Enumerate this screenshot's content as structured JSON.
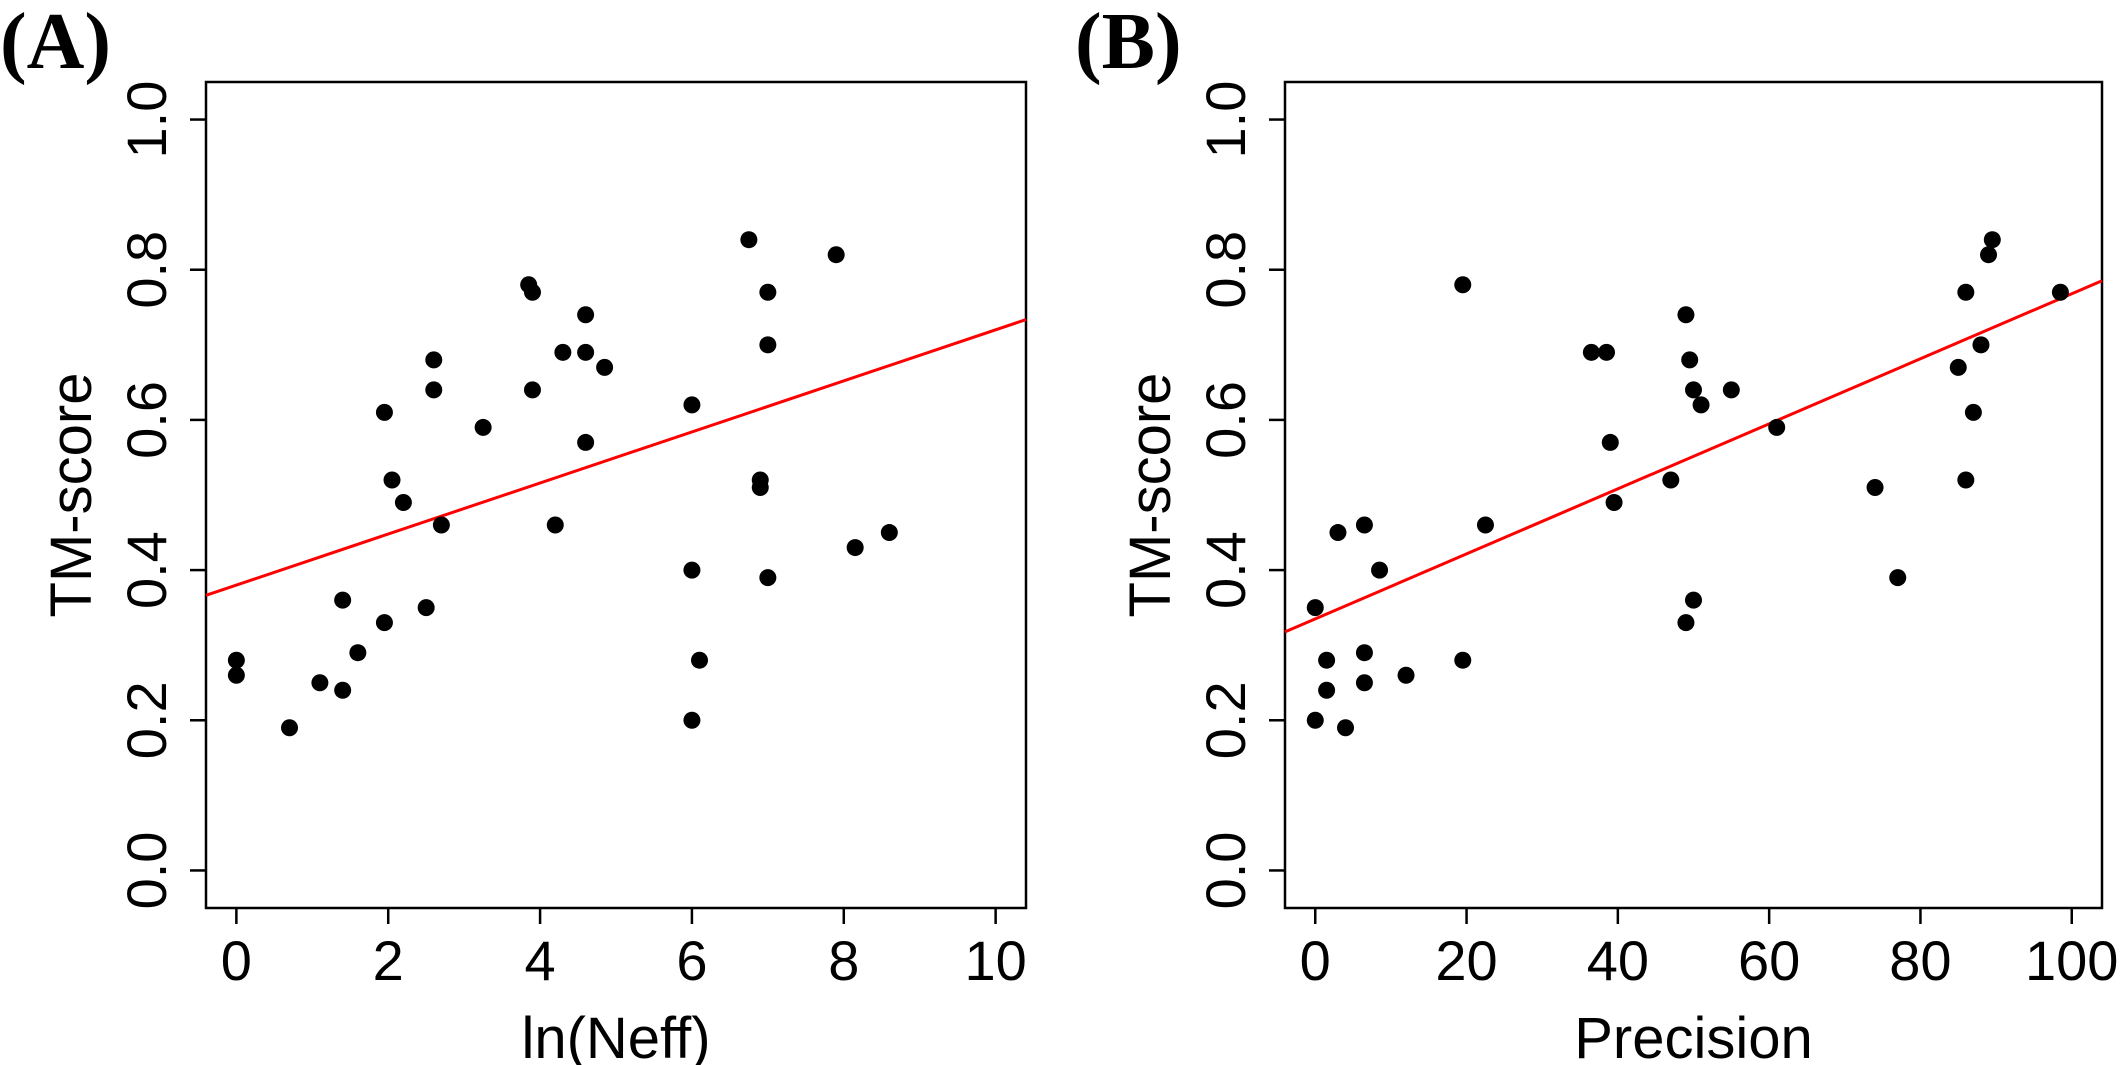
{
  "chart_data": [
    {
      "type": "scatter",
      "panel_label": "(A)",
      "xlabel": "ln(Neff)",
      "ylabel": "TM-score",
      "xlim": [
        -0.4,
        10.4
      ],
      "ylim": [
        -0.05,
        1.05
      ],
      "xticks": [
        "0",
        "2",
        "4",
        "6",
        "8",
        "10"
      ],
      "xtick_values": [
        0,
        2,
        4,
        6,
        8,
        10
      ],
      "yticks": [
        "0.0",
        "0.2",
        "0.4",
        "0.6",
        "0.8",
        "1.0"
      ],
      "ytick_values": [
        0,
        0.2,
        0.4,
        0.6,
        0.8,
        1.0
      ],
      "grid": false,
      "point_color": "#000000",
      "fit_color": "#ff0000",
      "fit_line": {
        "slope": 0.034,
        "intercept": 0.38
      },
      "points": [
        {
          "x": 0.0,
          "y": 0.28
        },
        {
          "x": 0.0,
          "y": 0.26
        },
        {
          "x": 0.7,
          "y": 0.19
        },
        {
          "x": 1.1,
          "y": 0.25
        },
        {
          "x": 1.4,
          "y": 0.36
        },
        {
          "x": 1.4,
          "y": 0.24
        },
        {
          "x": 1.6,
          "y": 0.29
        },
        {
          "x": 1.95,
          "y": 0.61
        },
        {
          "x": 1.95,
          "y": 0.33
        },
        {
          "x": 2.05,
          "y": 0.52
        },
        {
          "x": 2.2,
          "y": 0.49
        },
        {
          "x": 2.5,
          "y": 0.35
        },
        {
          "x": 2.6,
          "y": 0.68
        },
        {
          "x": 2.6,
          "y": 0.64
        },
        {
          "x": 2.7,
          "y": 0.46
        },
        {
          "x": 3.25,
          "y": 0.59
        },
        {
          "x": 3.85,
          "y": 0.78
        },
        {
          "x": 3.9,
          "y": 0.77
        },
        {
          "x": 3.9,
          "y": 0.64
        },
        {
          "x": 4.2,
          "y": 0.46
        },
        {
          "x": 4.3,
          "y": 0.69
        },
        {
          "x": 4.6,
          "y": 0.74
        },
        {
          "x": 4.6,
          "y": 0.69
        },
        {
          "x": 4.6,
          "y": 0.57
        },
        {
          "x": 4.85,
          "y": 0.67
        },
        {
          "x": 6.0,
          "y": 0.62
        },
        {
          "x": 6.0,
          "y": 0.4
        },
        {
          "x": 6.0,
          "y": 0.2
        },
        {
          "x": 6.1,
          "y": 0.28
        },
        {
          "x": 6.75,
          "y": 0.84
        },
        {
          "x": 6.9,
          "y": 0.52
        },
        {
          "x": 6.9,
          "y": 0.51
        },
        {
          "x": 7.0,
          "y": 0.77
        },
        {
          "x": 7.0,
          "y": 0.7
        },
        {
          "x": 7.0,
          "y": 0.39
        },
        {
          "x": 7.9,
          "y": 0.82
        },
        {
          "x": 8.15,
          "y": 0.43
        },
        {
          "x": 8.6,
          "y": 0.45
        }
      ]
    },
    {
      "type": "scatter",
      "panel_label": "(B)",
      "xlabel": "Precision",
      "ylabel": "TM-score",
      "xlim": [
        -4,
        104
      ],
      "ylim": [
        -0.05,
        1.05
      ],
      "xticks": [
        "0",
        "20",
        "40",
        "60",
        "80",
        "100"
      ],
      "xtick_values": [
        0,
        20,
        40,
        60,
        80,
        100
      ],
      "yticks": [
        "0.0",
        "0.2",
        "0.4",
        "0.6",
        "0.8",
        "1.0"
      ],
      "ytick_values": [
        0,
        0.2,
        0.4,
        0.6,
        0.8,
        1.0
      ],
      "grid": false,
      "point_color": "#000000",
      "fit_color": "#ff0000",
      "fit_line": {
        "slope": 0.00433,
        "intercept": 0.335
      },
      "points": [
        {
          "x": 0.0,
          "y": 0.35
        },
        {
          "x": 0.0,
          "y": 0.2
        },
        {
          "x": 1.5,
          "y": 0.28
        },
        {
          "x": 1.5,
          "y": 0.24
        },
        {
          "x": 3.0,
          "y": 0.45
        },
        {
          "x": 4.0,
          "y": 0.19
        },
        {
          "x": 6.5,
          "y": 0.46
        },
        {
          "x": 6.5,
          "y": 0.29
        },
        {
          "x": 6.5,
          "y": 0.25
        },
        {
          "x": 8.5,
          "y": 0.4
        },
        {
          "x": 12.0,
          "y": 0.26
        },
        {
          "x": 19.5,
          "y": 0.78
        },
        {
          "x": 19.5,
          "y": 0.28
        },
        {
          "x": 22.5,
          "y": 0.46
        },
        {
          "x": 36.5,
          "y": 0.69
        },
        {
          "x": 38.5,
          "y": 0.69
        },
        {
          "x": 39.0,
          "y": 0.57
        },
        {
          "x": 39.5,
          "y": 0.49
        },
        {
          "x": 47.0,
          "y": 0.52
        },
        {
          "x": 49.0,
          "y": 0.74
        },
        {
          "x": 49.5,
          "y": 0.68
        },
        {
          "x": 50.0,
          "y": 0.64
        },
        {
          "x": 51.0,
          "y": 0.62
        },
        {
          "x": 50.0,
          "y": 0.36
        },
        {
          "x": 49.0,
          "y": 0.33
        },
        {
          "x": 55.0,
          "y": 0.64
        },
        {
          "x": 61.0,
          "y": 0.59
        },
        {
          "x": 74.0,
          "y": 0.51
        },
        {
          "x": 77.0,
          "y": 0.39
        },
        {
          "x": 85.0,
          "y": 0.67
        },
        {
          "x": 86.0,
          "y": 0.77
        },
        {
          "x": 86.0,
          "y": 0.52
        },
        {
          "x": 87.0,
          "y": 0.61
        },
        {
          "x": 88.0,
          "y": 0.7
        },
        {
          "x": 89.0,
          "y": 0.82
        },
        {
          "x": 89.5,
          "y": 0.84
        },
        {
          "x": 98.5,
          "y": 0.77
        }
      ]
    }
  ]
}
